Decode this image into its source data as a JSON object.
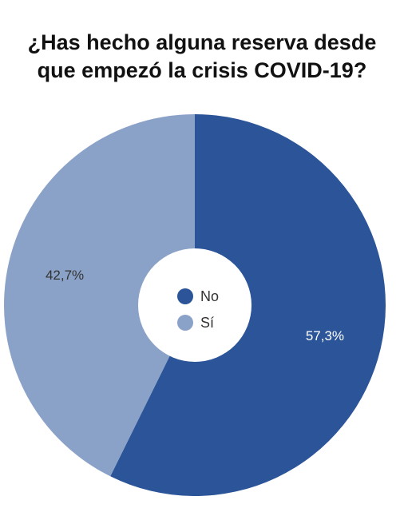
{
  "chart_data": {
    "type": "pie",
    "donut": true,
    "title_lines": [
      "¿Has hecho alguna reserva desde",
      "que empezó la crisis COVID-19?"
    ],
    "categories": [
      "No",
      "Sí"
    ],
    "values": [
      57.3,
      42.7
    ],
    "value_labels": [
      "57,3%",
      "42,7%"
    ],
    "colors": [
      "#2c5599",
      "#8ba2c8"
    ],
    "label_colors": [
      "#ffffff",
      "#333333"
    ],
    "legend": {
      "placement": "center",
      "entries": [
        "No",
        "Sí"
      ]
    }
  }
}
